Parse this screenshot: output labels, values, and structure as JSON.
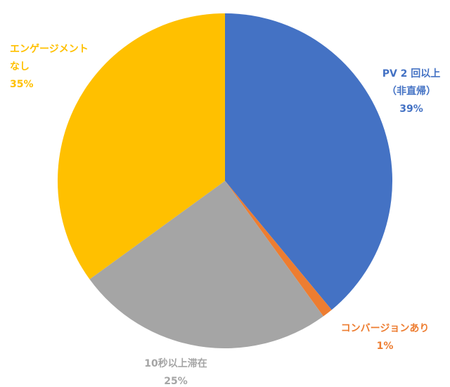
{
  "chart_data": {
    "type": "pie",
    "categories": [
      "PV 2 回以上\n（非直帰）",
      "コンバージョンあり",
      "10秒以上滞在",
      "エンゲージメント\nなし"
    ],
    "values": [
      39,
      1,
      25,
      35
    ],
    "value_labels": [
      "39%",
      "1%",
      "25%",
      "35%"
    ],
    "colors": [
      "#4472c4",
      "#ed7d31",
      "#a5a5a5",
      "#ffc000"
    ]
  }
}
